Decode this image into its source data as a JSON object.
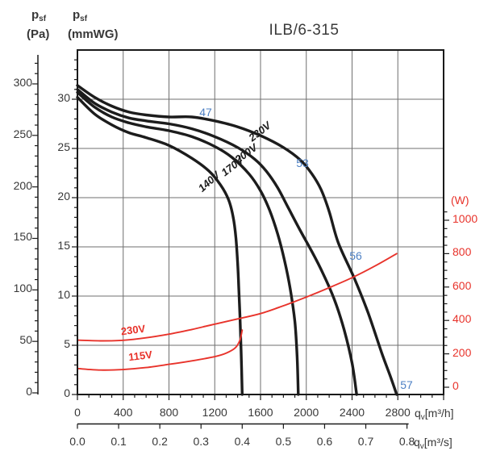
{
  "title": "ILB/6-315",
  "colors": {
    "curve_black": "#1c1c1c",
    "power_red": "#e8332b",
    "sound_blue": "#4d80c4",
    "grid": "#6f6f6f",
    "axis_black": "#1a1a1a",
    "text": "#383838"
  },
  "axes": {
    "pa": {
      "label_base": "p",
      "label_sub": "sf",
      "unit": "(Pa)",
      "ticks": [
        0,
        50,
        100,
        150,
        200,
        250,
        300
      ]
    },
    "mmwg": {
      "label_base": "p",
      "label_sub": "sf",
      "unit": "(mmWG)",
      "ticks": [
        0,
        5,
        10,
        15,
        20,
        25,
        30
      ]
    },
    "watts": {
      "unit": "(W)",
      "ticks": [
        0,
        200,
        400,
        600,
        800,
        1000
      ]
    },
    "flow_h": {
      "ticks": [
        0,
        400,
        800,
        1200,
        1600,
        2000,
        2400,
        2800
      ],
      "unit_base": "q",
      "unit_sub": "v",
      "unit_rest": "[m³/h]"
    },
    "flow_s": {
      "ticks": [
        "0.0",
        "0.1",
        "0.2",
        "0.3",
        "0.4",
        "0.5",
        "0.6",
        "0.7",
        "0.8"
      ],
      "unit_base": "q",
      "unit_sub": "v",
      "unit_rest": "[m³/s]"
    }
  },
  "chart_data": {
    "type": "line",
    "title": "ILB/6-315",
    "x_axis": {
      "label": "qv [m³/h]",
      "range": [
        0,
        3200
      ],
      "gridline_step": 400,
      "secondary_label": "qv [m³/s]",
      "secondary_range": [
        0,
        0.8
      ]
    },
    "y_axis_left_pa": {
      "label": "psf (Pa)",
      "range": [
        0,
        300
      ]
    },
    "y_axis_left_mmwg": {
      "label": "psf (mmWG)",
      "range": [
        0,
        30
      ],
      "gridline_step": 5
    },
    "y_axis_right_watts": {
      "label": "(W)",
      "range": [
        0,
        1000
      ]
    },
    "series": [
      {
        "name": "230V",
        "kind": "fan-pressure",
        "y_unit": "mmWG",
        "color": "#1c1c1c",
        "label_anchor": {
          "q": 1593,
          "v": 26.7,
          "rot": -38
        },
        "points": [
          [
            0,
            31.4
          ],
          [
            150,
            30.2
          ],
          [
            300,
            29.3
          ],
          [
            450,
            28.7
          ],
          [
            600,
            28.4
          ],
          [
            800,
            28.2
          ],
          [
            1000,
            28.2
          ],
          [
            1200,
            27.8
          ],
          [
            1400,
            27.2
          ],
          [
            1600,
            26.3
          ],
          [
            1800,
            25.1
          ],
          [
            1950,
            23.8
          ],
          [
            2050,
            22.4
          ],
          [
            2130,
            20.8
          ],
          [
            2200,
            18.6
          ],
          [
            2280,
            15.4
          ],
          [
            2420,
            11.8
          ],
          [
            2540,
            8.3
          ],
          [
            2660,
            4.2
          ],
          [
            2730,
            2.0
          ],
          [
            2790,
            0
          ]
        ]
      },
      {
        "name": "200V",
        "kind": "fan-pressure",
        "y_unit": "mmWG",
        "color": "#1c1c1c",
        "label_anchor": {
          "q": 1473,
          "v": 24.5,
          "rot": -36
        },
        "points": [
          [
            0,
            31.0
          ],
          [
            150,
            29.6
          ],
          [
            300,
            28.7
          ],
          [
            450,
            28.1
          ],
          [
            600,
            27.8
          ],
          [
            800,
            27.5
          ],
          [
            1000,
            27.0
          ],
          [
            1200,
            26.2
          ],
          [
            1400,
            25.1
          ],
          [
            1550,
            23.9
          ],
          [
            1650,
            22.7
          ],
          [
            1750,
            21.0
          ],
          [
            1850,
            18.8
          ],
          [
            1950,
            16.6
          ],
          [
            2050,
            14.5
          ],
          [
            2150,
            12.2
          ],
          [
            2250,
            9.5
          ],
          [
            2330,
            6.6
          ],
          [
            2400,
            3.2
          ],
          [
            2440,
            0
          ]
        ]
      },
      {
        "name": "170V",
        "kind": "fan-pressure",
        "y_unit": "mmWG",
        "color": "#1c1c1c",
        "label_anchor": {
          "q": 1353,
          "v": 23.2,
          "rot": -38
        },
        "points": [
          [
            0,
            30.7
          ],
          [
            150,
            29.2
          ],
          [
            300,
            28.2
          ],
          [
            450,
            27.6
          ],
          [
            600,
            27.2
          ],
          [
            800,
            26.8
          ],
          [
            1000,
            26.2
          ],
          [
            1200,
            25.2
          ],
          [
            1350,
            24.1
          ],
          [
            1500,
            22.4
          ],
          [
            1600,
            20.7
          ],
          [
            1680,
            18.7
          ],
          [
            1750,
            16.3
          ],
          [
            1810,
            13.6
          ],
          [
            1860,
            10.7
          ],
          [
            1900,
            7.4
          ],
          [
            1920,
            3.8
          ],
          [
            1930,
            0
          ]
        ]
      },
      {
        "name": "140V",
        "kind": "fan-pressure",
        "y_unit": "mmWG",
        "color": "#1c1c1c",
        "label_anchor": {
          "q": 1149,
          "v": 21.6,
          "rot": -42
        },
        "points": [
          [
            0,
            30.2
          ],
          [
            150,
            28.5
          ],
          [
            300,
            27.4
          ],
          [
            450,
            26.6
          ],
          [
            600,
            26.1
          ],
          [
            800,
            25.3
          ],
          [
            1000,
            24.0
          ],
          [
            1150,
            22.7
          ],
          [
            1250,
            21.3
          ],
          [
            1320,
            19.8
          ],
          [
            1360,
            18.1
          ],
          [
            1385,
            15.9
          ],
          [
            1400,
            13.4
          ],
          [
            1410,
            10.9
          ],
          [
            1420,
            8.0
          ],
          [
            1430,
            4.5
          ],
          [
            1440,
            0
          ]
        ]
      },
      {
        "name": "230V",
        "kind": "power",
        "y_unit": "W",
        "color": "#e8332b",
        "label_anchor": {
          "q": 486,
          "v": 343,
          "rot": -7
        },
        "points": [
          [
            0,
            282
          ],
          [
            200,
            278
          ],
          [
            400,
            281
          ],
          [
            600,
            296
          ],
          [
            800,
            318
          ],
          [
            1000,
            346
          ],
          [
            1200,
            378
          ],
          [
            1400,
            409
          ],
          [
            1600,
            441
          ],
          [
            1800,
            488
          ],
          [
            2000,
            540
          ],
          [
            2200,
            596
          ],
          [
            2400,
            656
          ],
          [
            2600,
            726
          ],
          [
            2790,
            800
          ]
        ]
      },
      {
        "name": "115V",
        "kind": "power",
        "y_unit": "W",
        "color": "#e8332b",
        "label_anchor": {
          "q": 550,
          "v": 188,
          "rot": -7
        },
        "points": [
          [
            0,
            112
          ],
          [
            200,
            103
          ],
          [
            400,
            106
          ],
          [
            600,
            118
          ],
          [
            800,
            137
          ],
          [
            1000,
            158
          ],
          [
            1200,
            183
          ],
          [
            1300,
            204
          ],
          [
            1380,
            236
          ],
          [
            1420,
            282
          ],
          [
            1440,
            342
          ]
        ]
      }
    ],
    "sound_labels": [
      {
        "text": "47",
        "q": 1121,
        "mmwg": 28.7
      },
      {
        "text": "53",
        "q": 1967,
        "mmwg": 23.5
      },
      {
        "text": "56",
        "q": 2432,
        "mmwg": 14.1
      },
      {
        "text": "57",
        "q": 2876,
        "mmwg": 1.0
      }
    ]
  }
}
